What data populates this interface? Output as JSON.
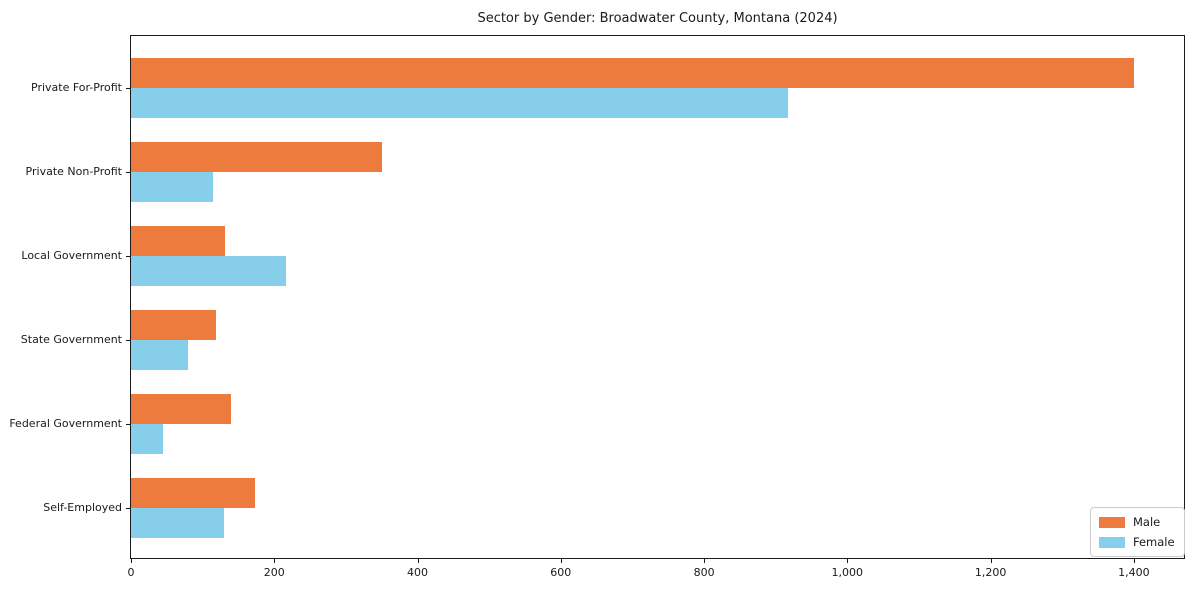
{
  "chart_data": {
    "type": "bar",
    "orientation": "horizontal",
    "title": "Sector by Gender: Broadwater County, Montana (2024)",
    "categories": [
      "Private For-Profit",
      "Private Non-Profit",
      "Local Government",
      "State Government",
      "Federal Government",
      "Self-Employed"
    ],
    "series": [
      {
        "name": "Male",
        "color": "#EC7B3D",
        "values": [
          1400,
          350,
          131,
          119,
          139,
          173
        ]
      },
      {
        "name": "Female",
        "color": "#87CEEB",
        "values": [
          917,
          114,
          217,
          79,
          45,
          130
        ]
      }
    ],
    "xlabel": "",
    "ylabel": "",
    "xlim": [
      0,
      1470
    ],
    "x_ticks": [
      0,
      200,
      400,
      600,
      800,
      1000,
      1200,
      1400
    ],
    "x_tick_labels": [
      "0",
      "200",
      "400",
      "600",
      "800",
      "1,000",
      "1,200",
      "1,400"
    ],
    "grid": false,
    "legend_position": "lower right",
    "axis_color": "#1a1a1a",
    "legend_border_color": "#cccccc"
  }
}
